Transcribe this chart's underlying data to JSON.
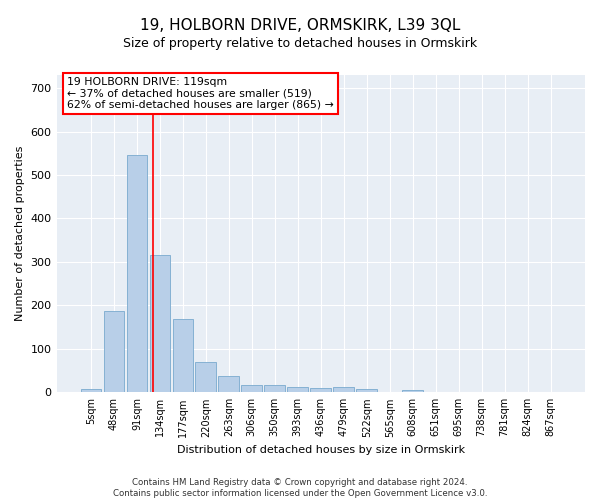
{
  "title": "19, HOLBORN DRIVE, ORMSKIRK, L39 3QL",
  "subtitle": "Size of property relative to detached houses in Ormskirk",
  "xlabel": "Distribution of detached houses by size in Ormskirk",
  "ylabel": "Number of detached properties",
  "bar_labels": [
    "5sqm",
    "48sqm",
    "91sqm",
    "134sqm",
    "177sqm",
    "220sqm",
    "263sqm",
    "306sqm",
    "350sqm",
    "393sqm",
    "436sqm",
    "479sqm",
    "522sqm",
    "565sqm",
    "608sqm",
    "651sqm",
    "695sqm",
    "738sqm",
    "781sqm",
    "824sqm",
    "867sqm"
  ],
  "bar_values": [
    8,
    188,
    545,
    315,
    168,
    70,
    38,
    17,
    17,
    12,
    10,
    12,
    8,
    0,
    5,
    0,
    0,
    0,
    0,
    0,
    0
  ],
  "bar_color": "#b8cfe8",
  "bar_edge_color": "#7aaace",
  "red_line_x": 2.72,
  "annotation_text": "19 HOLBORN DRIVE: 119sqm\n← 37% of detached houses are smaller (519)\n62% of semi-detached houses are larger (865) →",
  "annotation_box_color": "white",
  "annotation_box_edge": "red",
  "ylim": [
    0,
    730
  ],
  "yticks": [
    0,
    100,
    200,
    300,
    400,
    500,
    600,
    700
  ],
  "background_color": "#e8eef5",
  "title_fontsize": 11,
  "subtitle_fontsize": 9,
  "tick_fontsize": 8,
  "ylabel_fontsize": 8,
  "xlabel_fontsize": 8,
  "footer_line1": "Contains HM Land Registry data © Crown copyright and database right 2024.",
  "footer_line2": "Contains public sector information licensed under the Open Government Licence v3.0."
}
